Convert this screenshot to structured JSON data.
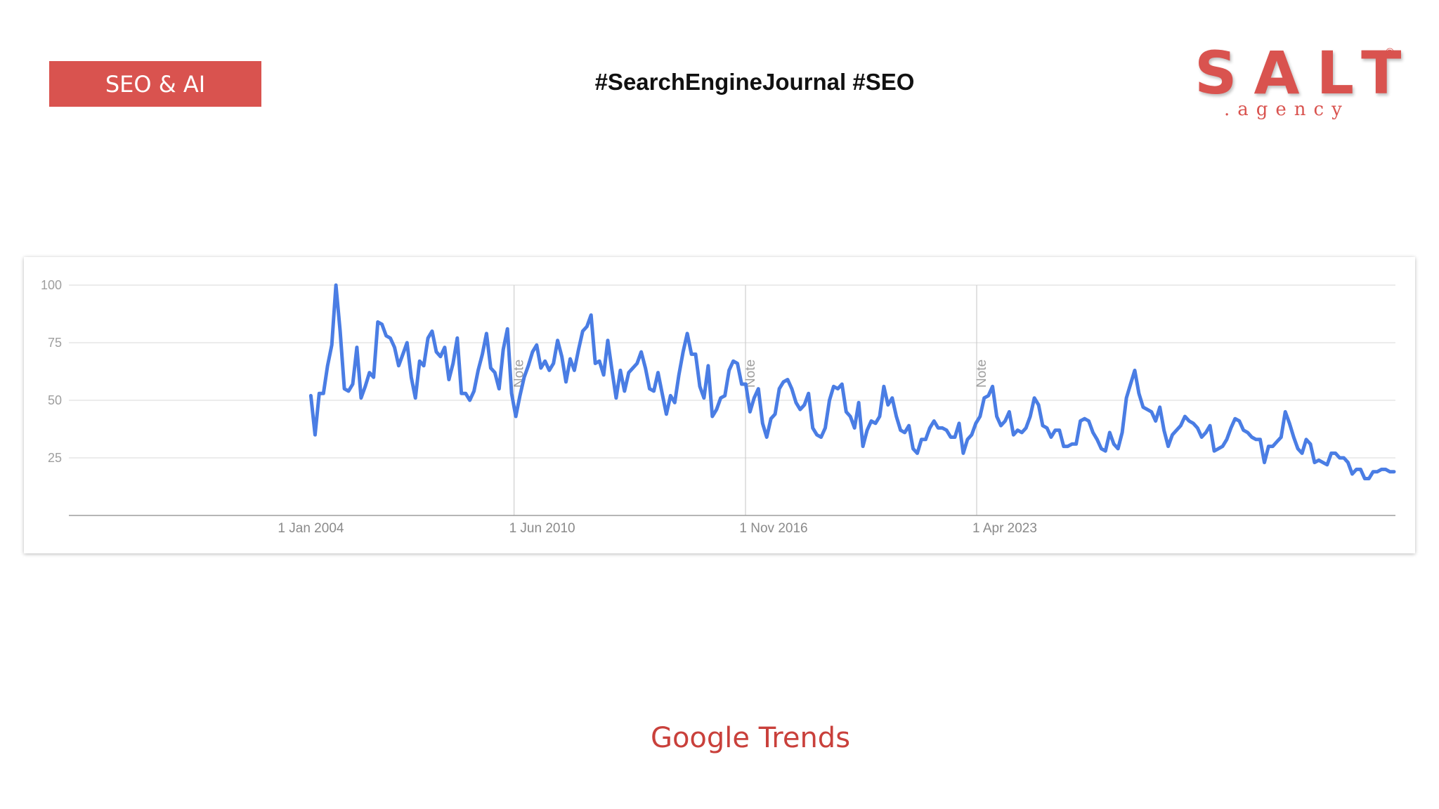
{
  "header": {
    "tag_label": "SEO & AI",
    "hashtags": "#SearchEngineJournal #SEO"
  },
  "logo": {
    "main": "SALT",
    "registered": "®",
    "sub": ".agency"
  },
  "caption": "Google Trends",
  "colors": {
    "accent": "#d9534f",
    "series": "#4a7de4",
    "grid": "#e0e0e0"
  },
  "chart_data": {
    "type": "line",
    "title": "",
    "xlabel": "",
    "ylabel": "",
    "ylim": [
      0,
      100
    ],
    "yticks": [
      25,
      50,
      75,
      100
    ],
    "x_tick_labels": [
      "1 Jan 2004",
      "1 Jun 2010",
      "1 Nov 2016",
      "1 Apr 2023"
    ],
    "x_tick_dates": [
      "2004-01-01",
      "2010-06-01",
      "2016-11-01",
      "2023-04-01"
    ],
    "annotations": [
      {
        "label": "Note",
        "date": "2011-01-01"
      },
      {
        "label": "Note",
        "date": "2016-01-01"
      },
      {
        "label": "Note",
        "date": "2022-01-01"
      }
    ],
    "grid": true,
    "series": [
      {
        "values": [
          52,
          35,
          53,
          53,
          65,
          74,
          100,
          80,
          55,
          54,
          57,
          73,
          51,
          56,
          62,
          60,
          84,
          83,
          78,
          77,
          73,
          65,
          70,
          75,
          60,
          51,
          67,
          65,
          77,
          80,
          71,
          69,
          73,
          59,
          66,
          77,
          53,
          53,
          50,
          54,
          63,
          70,
          79,
          64,
          62,
          55,
          72,
          81,
          53,
          43,
          52,
          60,
          65,
          71,
          74,
          64,
          67,
          63,
          66,
          76,
          69,
          58,
          68,
          63,
          72,
          80,
          82,
          87,
          66,
          67,
          61,
          76,
          63,
          51,
          63,
          54,
          62,
          64,
          66,
          71,
          64,
          55,
          54,
          62,
          53,
          44,
          52,
          49,
          61,
          71,
          79,
          70,
          70,
          56,
          51,
          65,
          43,
          46,
          51,
          52,
          63,
          67,
          66,
          57,
          57,
          45,
          51,
          55,
          40,
          34,
          42,
          44,
          55,
          58,
          59,
          55,
          49,
          46,
          48,
          53,
          38,
          35,
          34,
          38,
          50,
          56,
          55,
          57,
          45,
          43,
          38,
          49,
          30,
          37,
          41,
          40,
          43,
          56,
          48,
          51,
          43,
          37,
          36,
          39,
          29,
          27,
          33,
          33,
          38,
          41,
          38,
          38,
          37,
          34,
          34,
          40,
          27,
          33,
          35,
          40,
          43,
          51,
          52,
          56,
          43,
          39,
          41,
          45,
          35,
          37,
          36,
          38,
          43,
          51,
          48,
          39,
          38,
          34,
          37,
          37,
          30,
          30,
          31,
          31,
          41,
          42,
          41,
          36,
          33,
          29,
          28,
          36,
          31,
          29,
          36,
          51,
          57,
          63,
          53,
          47,
          46,
          45,
          41,
          47,
          37,
          30,
          35,
          37,
          39,
          43,
          41,
          40,
          38,
          34,
          36,
          39,
          28,
          29,
          30,
          33,
          38,
          42,
          41,
          37,
          36,
          34,
          33,
          33,
          23,
          30,
          30,
          32,
          34,
          45,
          40,
          34,
          29,
          27,
          33,
          31,
          23,
          24,
          23,
          22,
          27,
          27,
          25,
          25,
          23,
          18,
          20,
          20,
          16,
          16,
          19,
          19,
          20,
          20,
          19,
          19
        ]
      }
    ]
  }
}
